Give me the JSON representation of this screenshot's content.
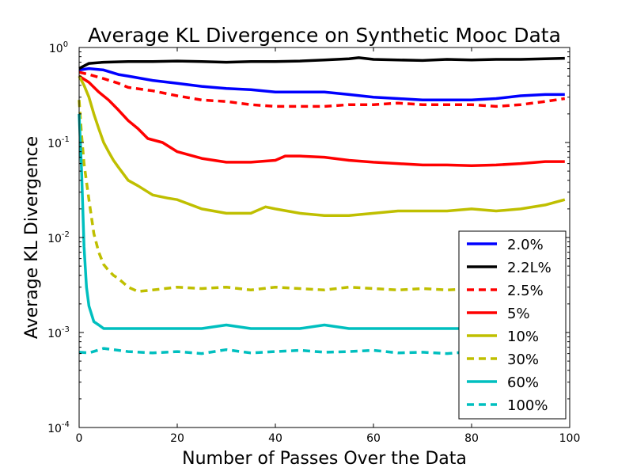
{
  "chart_data": {
    "type": "line",
    "title": "Average KL Divergence on Synthetic Mooc Data",
    "xlabel": "Number of Passes Over the Data",
    "ylabel": "Average KL Divergence",
    "xlim": [
      0,
      100
    ],
    "ylim": [
      0.0001,
      1
    ],
    "yscale": "log",
    "grid": false,
    "legend_position": "lower-right",
    "x_ticks": [
      {
        "value": 0,
        "label": "0"
      },
      {
        "value": 20,
        "label": "20"
      },
      {
        "value": 40,
        "label": "40"
      },
      {
        "value": 60,
        "label": "60"
      },
      {
        "value": 80,
        "label": "80"
      },
      {
        "value": 100,
        "label": "100"
      }
    ],
    "y_ticks": [
      {
        "value": 0.0001,
        "base": "10",
        "exp": "-4"
      },
      {
        "value": 0.001,
        "base": "10",
        "exp": "-3"
      },
      {
        "value": 0.01,
        "base": "10",
        "exp": "-2"
      },
      {
        "value": 0.1,
        "base": "10",
        "exp": "-1"
      },
      {
        "value": 1,
        "base": "10",
        "exp": "0"
      }
    ],
    "series": [
      {
        "name": "2.0%",
        "color": "#0000ff",
        "dash": "solid",
        "x": [
          0,
          2,
          5,
          8,
          10,
          15,
          20,
          25,
          30,
          35,
          40,
          45,
          50,
          55,
          60,
          65,
          70,
          75,
          80,
          85,
          90,
          95,
          99
        ],
        "y": [
          0.58,
          0.6,
          0.58,
          0.52,
          0.5,
          0.45,
          0.42,
          0.39,
          0.37,
          0.36,
          0.34,
          0.34,
          0.34,
          0.32,
          0.3,
          0.29,
          0.28,
          0.28,
          0.28,
          0.29,
          0.31,
          0.32,
          0.32
        ]
      },
      {
        "name": "2.2L%",
        "color": "#000000",
        "dash": "solid",
        "x": [
          0,
          2,
          5,
          10,
          15,
          20,
          25,
          30,
          35,
          40,
          45,
          50,
          55,
          57,
          60,
          65,
          70,
          75,
          80,
          85,
          90,
          95,
          99
        ],
        "y": [
          0.6,
          0.68,
          0.7,
          0.71,
          0.71,
          0.72,
          0.71,
          0.7,
          0.71,
          0.71,
          0.72,
          0.74,
          0.76,
          0.78,
          0.75,
          0.74,
          0.73,
          0.75,
          0.74,
          0.75,
          0.75,
          0.76,
          0.77
        ]
      },
      {
        "name": "2.5%",
        "color": "#ff0000",
        "dash": "dashed",
        "x": [
          0,
          2,
          5,
          8,
          10,
          15,
          20,
          25,
          30,
          35,
          40,
          45,
          50,
          55,
          60,
          65,
          70,
          75,
          80,
          85,
          90,
          95,
          99
        ],
        "y": [
          0.55,
          0.52,
          0.47,
          0.42,
          0.38,
          0.35,
          0.31,
          0.28,
          0.27,
          0.25,
          0.24,
          0.24,
          0.24,
          0.25,
          0.25,
          0.26,
          0.25,
          0.25,
          0.25,
          0.24,
          0.25,
          0.27,
          0.29
        ]
      },
      {
        "name": "5%",
        "color": "#ff0000",
        "dash": "solid",
        "x": [
          0,
          2,
          4,
          6,
          8,
          10,
          12,
          14,
          17,
          20,
          25,
          30,
          35,
          40,
          42,
          45,
          50,
          55,
          60,
          65,
          70,
          75,
          80,
          85,
          90,
          95,
          99
        ],
        "y": [
          0.5,
          0.43,
          0.34,
          0.28,
          0.22,
          0.17,
          0.14,
          0.11,
          0.1,
          0.08,
          0.068,
          0.062,
          0.062,
          0.065,
          0.072,
          0.072,
          0.07,
          0.065,
          0.062,
          0.06,
          0.058,
          0.058,
          0.057,
          0.058,
          0.06,
          0.063,
          0.063
        ]
      },
      {
        "name": "10%",
        "color": "#bfbf00",
        "dash": "solid",
        "x": [
          0,
          1,
          2,
          3,
          4,
          5,
          6,
          7,
          8,
          10,
          12,
          15,
          18,
          20,
          25,
          30,
          35,
          38,
          40,
          45,
          50,
          55,
          60,
          65,
          70,
          75,
          80,
          85,
          90,
          95,
          99
        ],
        "y": [
          0.5,
          0.4,
          0.3,
          0.2,
          0.14,
          0.1,
          0.08,
          0.065,
          0.055,
          0.04,
          0.035,
          0.028,
          0.026,
          0.025,
          0.02,
          0.018,
          0.018,
          0.021,
          0.02,
          0.018,
          0.017,
          0.017,
          0.018,
          0.019,
          0.019,
          0.019,
          0.02,
          0.019,
          0.02,
          0.022,
          0.025
        ]
      },
      {
        "name": "30%",
        "color": "#bfbf00",
        "dash": "dashed",
        "x": [
          0,
          0.5,
          1,
          2,
          3,
          4,
          5,
          6,
          7,
          8,
          10,
          12,
          15,
          20,
          25,
          30,
          35,
          40,
          45,
          50,
          55,
          60,
          65,
          70,
          75,
          80,
          85,
          90,
          95,
          99
        ],
        "y": [
          0.28,
          0.12,
          0.06,
          0.025,
          0.011,
          0.007,
          0.0052,
          0.0045,
          0.004,
          0.0037,
          0.003,
          0.0027,
          0.0028,
          0.003,
          0.0029,
          0.003,
          0.0028,
          0.003,
          0.0029,
          0.0028,
          0.003,
          0.0029,
          0.0028,
          0.0029,
          0.0028,
          0.0029,
          0.0031,
          0.0028,
          0.0029,
          0.0029
        ]
      },
      {
        "name": "60%",
        "color": "#00bfbf",
        "dash": "solid",
        "x": [
          0,
          0.5,
          1,
          1.5,
          2,
          3,
          4,
          5,
          7,
          10,
          15,
          20,
          25,
          30,
          35,
          40,
          45,
          50,
          55,
          60,
          65,
          70,
          75,
          80,
          85,
          90,
          95,
          99
        ],
        "y": [
          0.2,
          0.05,
          0.008,
          0.003,
          0.0019,
          0.0013,
          0.0012,
          0.0011,
          0.0011,
          0.0011,
          0.0011,
          0.0011,
          0.0011,
          0.0012,
          0.0011,
          0.0011,
          0.0011,
          0.0012,
          0.0011,
          0.0011,
          0.0011,
          0.0011,
          0.0011,
          0.0011,
          0.0011,
          0.0011,
          0.0011,
          0.001
        ]
      },
      {
        "name": "100%",
        "color": "#00bfbf",
        "dash": "dashed",
        "x": [
          0,
          2,
          5,
          10,
          15,
          20,
          25,
          30,
          35,
          40,
          45,
          50,
          55,
          60,
          65,
          70,
          75,
          80,
          85,
          90,
          95,
          99
        ],
        "y": [
          0.00062,
          0.00061,
          0.00068,
          0.00063,
          0.00061,
          0.00063,
          0.0006,
          0.00066,
          0.00061,
          0.00063,
          0.00065,
          0.00062,
          0.00063,
          0.00065,
          0.00061,
          0.00062,
          0.0006,
          0.00063,
          0.00061,
          0.00062,
          0.00062,
          0.00065
        ]
      }
    ]
  }
}
